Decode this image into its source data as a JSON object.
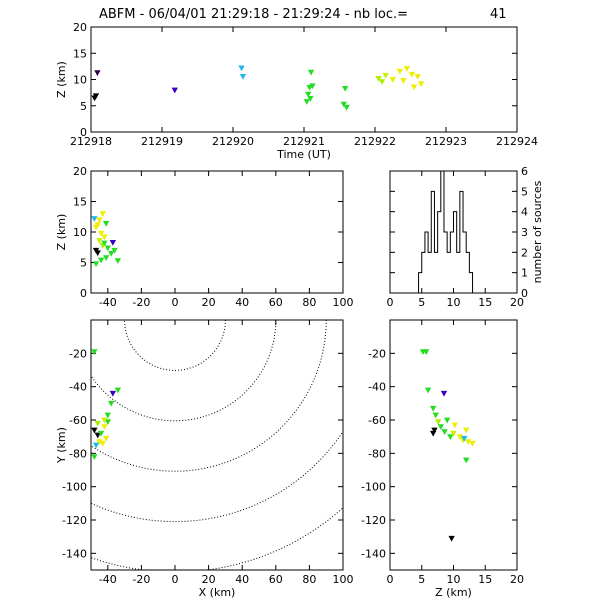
{
  "header": {
    "title": "ABFM - 06/04/01 21:29:18 - 21:29:24 - nb loc.=",
    "count": "41"
  },
  "chart_data": [
    {
      "id": "z_vs_time",
      "type": "scatter",
      "xlabel": "Time (UT)",
      "ylabel": "Z (km)",
      "xlim": [
        212918,
        212924
      ],
      "ylim": [
        0,
        20
      ],
      "xticks": [
        212918,
        212919,
        212920,
        212921,
        212922,
        212923,
        212924
      ],
      "yticks": [
        0,
        5,
        10,
        15,
        20
      ],
      "points": [
        {
          "x": 212918.05,
          "y": 6.5,
          "color": "#000000"
        },
        {
          "x": 212918.07,
          "y": 6.9,
          "color": "#000000"
        },
        {
          "x": 212918.09,
          "y": 11.3,
          "color": "#2a0040"
        },
        {
          "x": 212919.18,
          "y": 8.0,
          "color": "#3a00c0"
        },
        {
          "x": 212920.12,
          "y": 12.2,
          "color": "#1fb8e8"
        },
        {
          "x": 212920.14,
          "y": 10.6,
          "color": "#1fb8e8"
        },
        {
          "x": 212921.1,
          "y": 11.4,
          "color": "#22dd22"
        },
        {
          "x": 212921.08,
          "y": 8.5,
          "color": "#22dd22"
        },
        {
          "x": 212921.12,
          "y": 8.8,
          "color": "#22dd22"
        },
        {
          "x": 212921.06,
          "y": 7.2,
          "color": "#22dd22"
        },
        {
          "x": 212921.09,
          "y": 6.4,
          "color": "#22dd22"
        },
        {
          "x": 212921.04,
          "y": 5.8,
          "color": "#22dd22"
        },
        {
          "x": 212921.58,
          "y": 8.3,
          "color": "#22dd22"
        },
        {
          "x": 212921.56,
          "y": 5.3,
          "color": "#22dd22"
        },
        {
          "x": 212921.6,
          "y": 4.7,
          "color": "#22dd22"
        },
        {
          "x": 212922.05,
          "y": 10.2,
          "color": "#aaee00"
        },
        {
          "x": 212922.1,
          "y": 9.6,
          "color": "#aaee00"
        },
        {
          "x": 212922.15,
          "y": 10.8,
          "color": "#ccee00"
        },
        {
          "x": 212922.25,
          "y": 10.0,
          "color": "#eeee00"
        },
        {
          "x": 212922.35,
          "y": 11.6,
          "color": "#eeee00"
        },
        {
          "x": 212922.45,
          "y": 12.1,
          "color": "#eeee00"
        },
        {
          "x": 212922.52,
          "y": 11.0,
          "color": "#eeee00"
        },
        {
          "x": 212922.55,
          "y": 8.6,
          "color": "#eeee00"
        },
        {
          "x": 212922.6,
          "y": 10.6,
          "color": "#eeee00"
        },
        {
          "x": 212922.65,
          "y": 9.2,
          "color": "#eeee00"
        },
        {
          "x": 212922.4,
          "y": 9.8,
          "color": "#eeee00"
        }
      ]
    },
    {
      "id": "z_vs_x",
      "type": "scatter",
      "xlabel": "",
      "ylabel": "Z (km)",
      "xlim": [
        -50,
        100
      ],
      "ylim": [
        0,
        20
      ],
      "xticks": [
        -40,
        -20,
        0,
        20,
        40,
        60,
        80,
        100
      ],
      "yticks": [
        0,
        5,
        10,
        15,
        20
      ],
      "points": [
        {
          "x": -48,
          "y": 12.2,
          "color": "#1fb8e8"
        },
        {
          "x": -47,
          "y": 10.8,
          "color": "#eeee00"
        },
        {
          "x": -45,
          "y": 12.0,
          "color": "#eeee00"
        },
        {
          "x": -43,
          "y": 13.0,
          "color": "#eeee00"
        },
        {
          "x": -46,
          "y": 11.2,
          "color": "#eeee00"
        },
        {
          "x": -44,
          "y": 9.8,
          "color": "#eeee00"
        },
        {
          "x": -42,
          "y": 9.2,
          "color": "#eeee00"
        },
        {
          "x": -45,
          "y": 8.6,
          "color": "#ccee00"
        },
        {
          "x": -43,
          "y": 7.8,
          "color": "#aaee00"
        },
        {
          "x": -47,
          "y": 7.0,
          "color": "#000000"
        },
        {
          "x": -46,
          "y": 6.6,
          "color": "#000000"
        },
        {
          "x": -37,
          "y": 8.3,
          "color": "#3a00c0"
        },
        {
          "x": -42,
          "y": 8.2,
          "color": "#22dd22"
        },
        {
          "x": -40,
          "y": 7.4,
          "color": "#22dd22"
        },
        {
          "x": -38,
          "y": 6.5,
          "color": "#22dd22"
        },
        {
          "x": -41,
          "y": 5.8,
          "color": "#22dd22"
        },
        {
          "x": -44,
          "y": 5.4,
          "color": "#22dd22"
        },
        {
          "x": -47,
          "y": 4.8,
          "color": "#22dd22"
        },
        {
          "x": -34,
          "y": 5.3,
          "color": "#22dd22"
        },
        {
          "x": -36,
          "y": 7.0,
          "color": "#22dd22"
        },
        {
          "x": -41,
          "y": 11.4,
          "color": "#22dd22"
        }
      ]
    },
    {
      "id": "histogram",
      "type": "bar",
      "xlabel": "",
      "ylabel": "number of sources",
      "xlim": [
        0,
        20
      ],
      "ylim": [
        0,
        6
      ],
      "xticks": [
        0,
        5,
        10,
        15,
        20
      ],
      "yticks": [
        0,
        1,
        2,
        3,
        4,
        5,
        6
      ],
      "bin_width": 0.5,
      "bin_starts": [
        4.5,
        5.0,
        5.5,
        6.0,
        6.5,
        7.0,
        7.5,
        8.0,
        8.5,
        9.0,
        9.5,
        10.0,
        10.5,
        11.0,
        11.5,
        12.0,
        12.5
      ],
      "values": [
        1,
        2,
        3,
        2,
        5,
        2,
        4,
        6,
        3,
        2,
        3,
        4,
        2,
        5,
        3,
        2,
        1
      ]
    },
    {
      "id": "y_vs_x",
      "type": "scatter",
      "xlabel": "X (km)",
      "ylabel": "Y (km)",
      "xlim": [
        -50,
        100
      ],
      "ylim": [
        -150,
        0
      ],
      "xticks": [
        -40,
        -20,
        0,
        20,
        40,
        60,
        80,
        100
      ],
      "yticks": [
        -140,
        -120,
        -100,
        -80,
        -60,
        -40,
        -20
      ],
      "range_rings_km": [
        30,
        60,
        90,
        120,
        150
      ],
      "points": [
        {
          "x": -48,
          "y": -19,
          "color": "#22dd22"
        },
        {
          "x": -37,
          "y": -44,
          "color": "#3a00c0"
        },
        {
          "x": -34,
          "y": -42,
          "color": "#22dd22"
        },
        {
          "x": -38,
          "y": -50,
          "color": "#22dd22"
        },
        {
          "x": -40,
          "y": -57,
          "color": "#22dd22"
        },
        {
          "x": -46,
          "y": -62,
          "color": "#aaee00"
        },
        {
          "x": -48,
          "y": -66,
          "color": "#000000"
        },
        {
          "x": -46,
          "y": -69,
          "color": "#000000"
        },
        {
          "x": -44,
          "y": -68,
          "color": "#22dd22"
        },
        {
          "x": -42,
          "y": -64,
          "color": "#eeee00"
        },
        {
          "x": -41,
          "y": -71,
          "color": "#eeee00"
        },
        {
          "x": -43,
          "y": -74,
          "color": "#eeee00"
        },
        {
          "x": -45,
          "y": -73,
          "color": "#eeee00"
        },
        {
          "x": -40,
          "y": -61,
          "color": "#22dd22"
        },
        {
          "x": -42,
          "y": -60,
          "color": "#ccee00"
        },
        {
          "x": -47,
          "y": -75,
          "color": "#1fb8e8"
        },
        {
          "x": -48,
          "y": -82,
          "color": "#22dd22"
        }
      ]
    },
    {
      "id": "y_vs_z",
      "type": "scatter",
      "xlabel": "Z (km)",
      "ylabel": "",
      "xlim": [
        0,
        20
      ],
      "ylim": [
        -150,
        0
      ],
      "xticks": [
        0,
        5,
        10,
        15,
        20
      ],
      "yticks": [
        -140,
        -120,
        -100,
        -80,
        -60,
        -40,
        -20
      ],
      "points": [
        {
          "x": 5.2,
          "y": -19,
          "color": "#22dd22"
        },
        {
          "x": 5.7,
          "y": -19,
          "color": "#22dd22"
        },
        {
          "x": 6.0,
          "y": -42,
          "color": "#22dd22"
        },
        {
          "x": 8.5,
          "y": -44,
          "color": "#3a00c0"
        },
        {
          "x": 6.8,
          "y": -53,
          "color": "#22dd22"
        },
        {
          "x": 7.2,
          "y": -57,
          "color": "#22dd22"
        },
        {
          "x": 7.6,
          "y": -61,
          "color": "#aaee00"
        },
        {
          "x": 9.0,
          "y": -60,
          "color": "#22dd22"
        },
        {
          "x": 10.2,
          "y": -63,
          "color": "#eeee00"
        },
        {
          "x": 7.0,
          "y": -66,
          "color": "#000000"
        },
        {
          "x": 6.8,
          "y": -68,
          "color": "#000000"
        },
        {
          "x": 8.0,
          "y": -64,
          "color": "#22dd22"
        },
        {
          "x": 8.6,
          "y": -67,
          "color": "#22dd22"
        },
        {
          "x": 9.5,
          "y": -70,
          "color": "#22dd22"
        },
        {
          "x": 10.0,
          "y": -68,
          "color": "#ccee00"
        },
        {
          "x": 11.0,
          "y": -70,
          "color": "#eeee00"
        },
        {
          "x": 11.5,
          "y": -72,
          "color": "#eeee00"
        },
        {
          "x": 12.3,
          "y": -73,
          "color": "#eeee00"
        },
        {
          "x": 13.0,
          "y": -74,
          "color": "#eeee00"
        },
        {
          "x": 12.0,
          "y": -66,
          "color": "#eeee00"
        },
        {
          "x": 11.7,
          "y": -71,
          "color": "#1fb8e8"
        },
        {
          "x": 12.0,
          "y": -84,
          "color": "#22dd22"
        },
        {
          "x": 9.7,
          "y": -131,
          "color": "#000000"
        }
      ]
    }
  ]
}
